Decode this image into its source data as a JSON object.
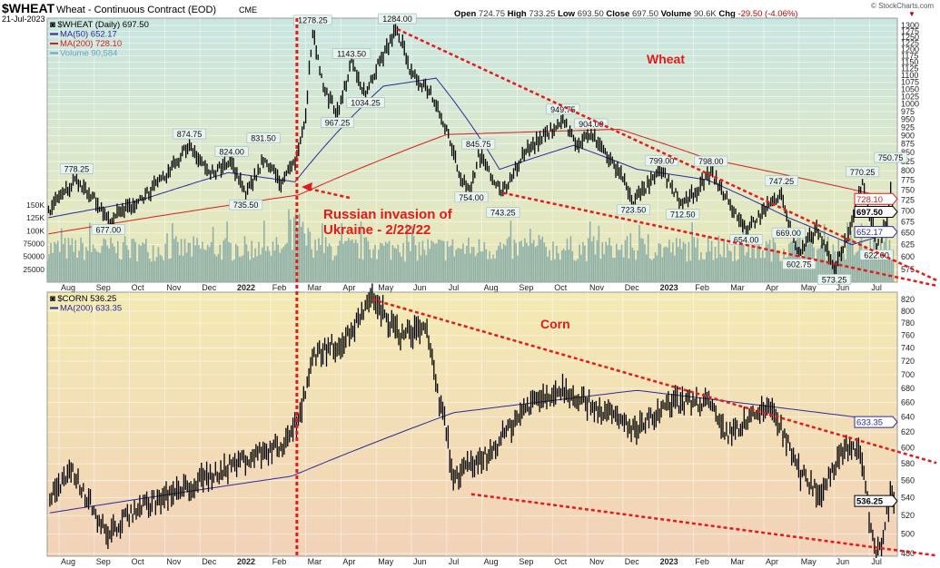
{
  "header": {
    "symbol": "$WHEAT",
    "name": "Wheat - Continuous Contract (EOD)",
    "exchange": "CME",
    "date": "21-Jul-2023",
    "credit": "© StockCharts.com",
    "ohlc": [
      {
        "k": "Open",
        "v": "724.75"
      },
      {
        "k": "High",
        "v": "733.25"
      },
      {
        "k": "Low",
        "v": "693.50"
      },
      {
        "k": "Close",
        "v": "697.50"
      },
      {
        "k": "Volume",
        "v": "90.6K"
      },
      {
        "k": "Chg",
        "v": "-29.50 (-4.06%)"
      }
    ]
  },
  "colors": {
    "price": "#000000",
    "ma50": "#2b2b9a",
    "ma200": "#d42020",
    "volume": "#8fb0a8",
    "trend": "#e41a1a",
    "wheat_bg_top": "#c9e6e1",
    "wheat_bg_bottom": "#ece8b6",
    "corn_bg_top": "#f3eab4",
    "corn_bg_bottom": "#f2d2b8"
  },
  "months": [
    "Aug",
    "Sep",
    "Oct",
    "Nov",
    "Dec",
    "2022",
    "Feb",
    "Mar",
    "Apr",
    "May",
    "Jun",
    "Jul",
    "Aug",
    "Sep",
    "Oct",
    "Nov",
    "Dec",
    "2023",
    "Feb",
    "Mar",
    "Apr",
    "May",
    "Jun",
    "Jul"
  ],
  "annotation": {
    "event_line1": "Russian invasion of",
    "event_line2": "Ukraine - 2/22/22",
    "event_t": 6.75
  },
  "chart_data": [
    {
      "type": "line",
      "title": "Wheat",
      "scale": "log",
      "ylim": [
        560,
        1320
      ],
      "legend": [
        "$WHEAT (Daily) 697.50",
        "MA(50) 652.17",
        "MA(200) 728.10",
        "Volume 90,584"
      ],
      "yticks": [
        1300,
        1275,
        1250,
        1225,
        1200,
        1175,
        1150,
        1125,
        1100,
        1075,
        1050,
        1025,
        1000,
        975,
        950,
        925,
        900,
        875,
        850,
        825,
        800,
        775,
        750,
        725,
        700,
        675,
        650,
        625,
        600,
        575
      ],
      "vol_ticks": [
        {
          "v": 150000,
          "l": "150K"
        },
        {
          "v": 125000,
          "l": "125K"
        },
        {
          "v": 100000,
          "l": "100K"
        },
        {
          "v": 75000,
          "l": "75000"
        },
        {
          "v": 50000,
          "l": "50000"
        },
        {
          "v": 25000,
          "l": "25000"
        }
      ],
      "x_unit": "months since Aug 2021",
      "price": [
        [
          -0.3,
          700
        ],
        [
          0.5,
          778
        ],
        [
          0.9,
          740
        ],
        [
          1.4,
          677
        ],
        [
          2.2,
          720
        ],
        [
          3.0,
          780
        ],
        [
          3.7,
          874
        ],
        [
          4.3,
          790
        ],
        [
          4.9,
          824
        ],
        [
          5.3,
          735
        ],
        [
          5.8,
          831
        ],
        [
          6.3,
          770
        ],
        [
          6.7,
          820
        ],
        [
          7.0,
          950
        ],
        [
          7.2,
          1278
        ],
        [
          7.5,
          1060
        ],
        [
          7.9,
          967
        ],
        [
          8.3,
          1143
        ],
        [
          8.7,
          1034
        ],
        [
          9.1,
          1150
        ],
        [
          9.6,
          1284
        ],
        [
          10.0,
          1100
        ],
        [
          10.5,
          1050
        ],
        [
          11.0,
          920
        ],
        [
          11.4,
          780
        ],
        [
          11.7,
          754
        ],
        [
          11.9,
          845
        ],
        [
          12.3,
          780
        ],
        [
          12.6,
          743
        ],
        [
          13.2,
          850
        ],
        [
          13.8,
          900
        ],
        [
          14.3,
          949
        ],
        [
          14.7,
          870
        ],
        [
          15.1,
          904
        ],
        [
          15.5,
          850
        ],
        [
          16.0,
          780
        ],
        [
          16.3,
          723
        ],
        [
          17.1,
          799
        ],
        [
          17.7,
          712
        ],
        [
          18.2,
          760
        ],
        [
          18.5,
          798
        ],
        [
          19.0,
          720
        ],
        [
          19.5,
          654
        ],
        [
          20.0,
          700
        ],
        [
          20.5,
          747
        ],
        [
          20.7,
          669
        ],
        [
          21.0,
          603
        ],
        [
          21.5,
          660
        ],
        [
          22.0,
          573
        ],
        [
          22.4,
          650
        ],
        [
          22.8,
          770
        ],
        [
          23.0,
          700
        ],
        [
          23.2,
          622
        ],
        [
          23.5,
          680
        ],
        [
          23.6,
          751
        ],
        [
          23.7,
          697.5
        ]
      ],
      "ma50": [
        [
          -0.3,
          684
        ],
        [
          2.2,
          722
        ],
        [
          4.8,
          795
        ],
        [
          6.7,
          771
        ],
        [
          9.2,
          1061
        ],
        [
          10.7,
          1090
        ],
        [
          12.5,
          804
        ],
        [
          14.6,
          871
        ],
        [
          16.4,
          804
        ],
        [
          18.4,
          776
        ],
        [
          20.7,
          684
        ],
        [
          22.5,
          625
        ],
        [
          23.7,
          652.17
        ]
      ],
      "ma200": [
        [
          -0.3,
          648
        ],
        [
          6.8,
          738
        ],
        [
          11.0,
          903
        ],
        [
          15.9,
          919
        ],
        [
          18.4,
          833
        ],
        [
          23.7,
          728.1
        ]
      ],
      "peak_labels": [
        {
          "t": 0.5,
          "v": 778,
          "l": "778.25",
          "pos": "above"
        },
        {
          "t": 1.4,
          "v": 677,
          "l": "677.00",
          "pos": "below"
        },
        {
          "t": 3.7,
          "v": 874,
          "l": "874.75",
          "pos": "above"
        },
        {
          "t": 4.9,
          "v": 824,
          "l": "824.00",
          "pos": "above"
        },
        {
          "t": 5.3,
          "v": 735,
          "l": "735.50",
          "pos": "below"
        },
        {
          "t": 5.8,
          "v": 831,
          "l": "831.50",
          "pos": "above"
        },
        {
          "t": 7.2,
          "v": 1278,
          "l": "1278.25",
          "pos": "above"
        },
        {
          "t": 7.9,
          "v": 967,
          "l": "967.25",
          "pos": "below"
        },
        {
          "t": 8.3,
          "v": 1143,
          "l": "1143.50",
          "pos": "above"
        },
        {
          "t": 8.7,
          "v": 1034,
          "l": "1034.25",
          "pos": "below"
        },
        {
          "t": 9.6,
          "v": 1284,
          "l": "1284.00",
          "pos": "above"
        },
        {
          "t": 11.7,
          "v": 754,
          "l": "754.00",
          "pos": "below"
        },
        {
          "t": 11.9,
          "v": 845,
          "l": "845.75",
          "pos": "above"
        },
        {
          "t": 12.6,
          "v": 743,
          "l": "743.25",
          "pos": "below"
        },
        {
          "t": 14.3,
          "v": 949,
          "l": "949.75",
          "pos": "above"
        },
        {
          "t": 15.1,
          "v": 904,
          "l": "904.00",
          "pos": "above"
        },
        {
          "t": 16.3,
          "v": 723,
          "l": "723.50",
          "pos": "below"
        },
        {
          "t": 17.1,
          "v": 799,
          "l": "799.00",
          "pos": "above"
        },
        {
          "t": 17.7,
          "v": 712,
          "l": "712.50",
          "pos": "below"
        },
        {
          "t": 18.5,
          "v": 798,
          "l": "798.00",
          "pos": "above"
        },
        {
          "t": 19.5,
          "v": 654,
          "l": "654.00",
          "pos": "below"
        },
        {
          "t": 20.5,
          "v": 747,
          "l": "747.25",
          "pos": "above"
        },
        {
          "t": 20.7,
          "v": 669,
          "l": "669.00",
          "pos": "below"
        },
        {
          "t": 21.0,
          "v": 603,
          "l": "602.75",
          "pos": "below"
        },
        {
          "t": 22.0,
          "v": 573,
          "l": "573.25",
          "pos": "below"
        },
        {
          "t": 22.8,
          "v": 770,
          "l": "770.25",
          "pos": "above"
        },
        {
          "t": 23.2,
          "v": 622,
          "l": "622.00",
          "pos": "below"
        },
        {
          "t": 23.6,
          "v": 751,
          "l": "750.75",
          "pos": "above"
        }
      ],
      "tags": [
        {
          "v": 728.1,
          "l": "728.10",
          "c": "#d42020"
        },
        {
          "v": 697.5,
          "l": "697.50",
          "c": "#000000"
        },
        {
          "v": 652.17,
          "l": "652.17",
          "c": "#2b2b9a"
        }
      ],
      "trendlines": [
        [
          [
            9.6,
            1284
          ],
          [
            24.9,
            555
          ]
        ],
        [
          [
            12.6,
            743
          ],
          [
            24.9,
            545
          ]
        ]
      ]
    },
    {
      "type": "line",
      "title": "Corn",
      "scale": "log",
      "ylim": [
        475,
        830
      ],
      "legend": [
        "$CORN 536.25",
        "MA(200) 633.35"
      ],
      "yticks": [
        820,
        800,
        780,
        760,
        740,
        720,
        700,
        680,
        660,
        640,
        620,
        600,
        580,
        560,
        540,
        520,
        500,
        480
      ],
      "price": [
        [
          -0.26,
          540
        ],
        [
          0.39,
          570
        ],
        [
          1.37,
          498
        ],
        [
          2.19,
          528
        ],
        [
          3.48,
          548
        ],
        [
          5.28,
          586
        ],
        [
          6.31,
          603
        ],
        [
          6.78,
          633
        ],
        [
          7.22,
          730
        ],
        [
          8.12,
          752
        ],
        [
          8.89,
          820
        ],
        [
          9.66,
          760
        ],
        [
          10.44,
          774
        ],
        [
          10.7,
          677
        ],
        [
          10.95,
          633
        ],
        [
          11.2,
          560
        ],
        [
          11.6,
          575
        ],
        [
          12.2,
          592
        ],
        [
          13.3,
          657
        ],
        [
          14.3,
          680
        ],
        [
          15.3,
          652
        ],
        [
          16.4,
          622
        ],
        [
          17.4,
          659
        ],
        [
          18.4,
          662
        ],
        [
          18.9,
          615
        ],
        [
          20.2,
          655
        ],
        [
          21.0,
          570
        ],
        [
          21.6,
          544
        ],
        [
          22.3,
          603
        ],
        [
          22.7,
          600
        ],
        [
          23.1,
          489
        ],
        [
          23.3,
          484
        ],
        [
          23.6,
          544
        ],
        [
          23.7,
          536.25
        ]
      ],
      "ma200": [
        [
          -0.26,
          523
        ],
        [
          6.6,
          565
        ],
        [
          11.2,
          646
        ],
        [
          16.4,
          677
        ],
        [
          23.7,
          633.35
        ]
      ],
      "tags": [
        {
          "v": 633.35,
          "l": "633.35",
          "c": "#2b2b9a"
        },
        {
          "v": 536.25,
          "l": "536.25",
          "c": "#000000"
        }
      ],
      "trendlines": [
        [
          [
            8.89,
            820
          ],
          [
            24.9,
            581
          ]
        ],
        [
          [
            11.7,
            544
          ],
          [
            24.9,
            478
          ]
        ]
      ]
    }
  ]
}
